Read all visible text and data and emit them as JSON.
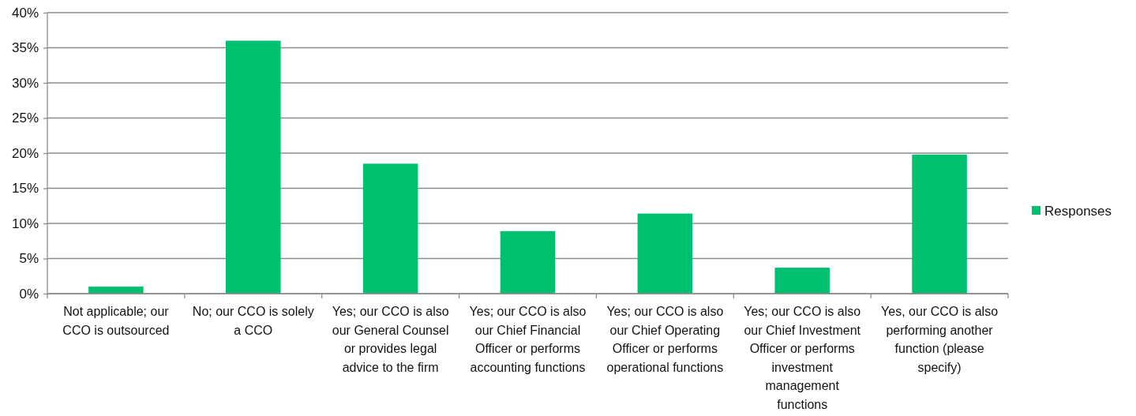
{
  "chart_data": {
    "type": "bar",
    "categories": [
      "Not applicable; our CCO is outsourced",
      "No; our CCO is solely a CCO",
      "Yes; our CCO is also our General Counsel or provides legal advice to the firm",
      "Yes; our CCO is also our Chief Financial Officer or performs accounting functions",
      "Yes; our CCO is also our Chief Operating Officer or performs operational functions",
      "Yes; our CCO is also our Chief Investment Officer or performs investment management functions",
      "Yes, our CCO is also performing another function (please specify)"
    ],
    "series": [
      {
        "name": "Responses",
        "color": "#00bf6f",
        "values": [
          1.0,
          36.0,
          18.5,
          8.9,
          11.4,
          3.7,
          19.8
        ]
      }
    ],
    "ylim": [
      0,
      40
    ],
    "yticks": [
      {
        "value": 0,
        "label": "0%"
      },
      {
        "value": 5,
        "label": "5%"
      },
      {
        "value": 10,
        "label": "10%"
      },
      {
        "value": 15,
        "label": "15%"
      },
      {
        "value": 20,
        "label": "20%"
      },
      {
        "value": 25,
        "label": "25%"
      },
      {
        "value": 30,
        "label": "30%"
      },
      {
        "value": 35,
        "label": "35%"
      },
      {
        "value": 40,
        "label": "40%"
      }
    ],
    "grid": "y",
    "legend": "right"
  }
}
